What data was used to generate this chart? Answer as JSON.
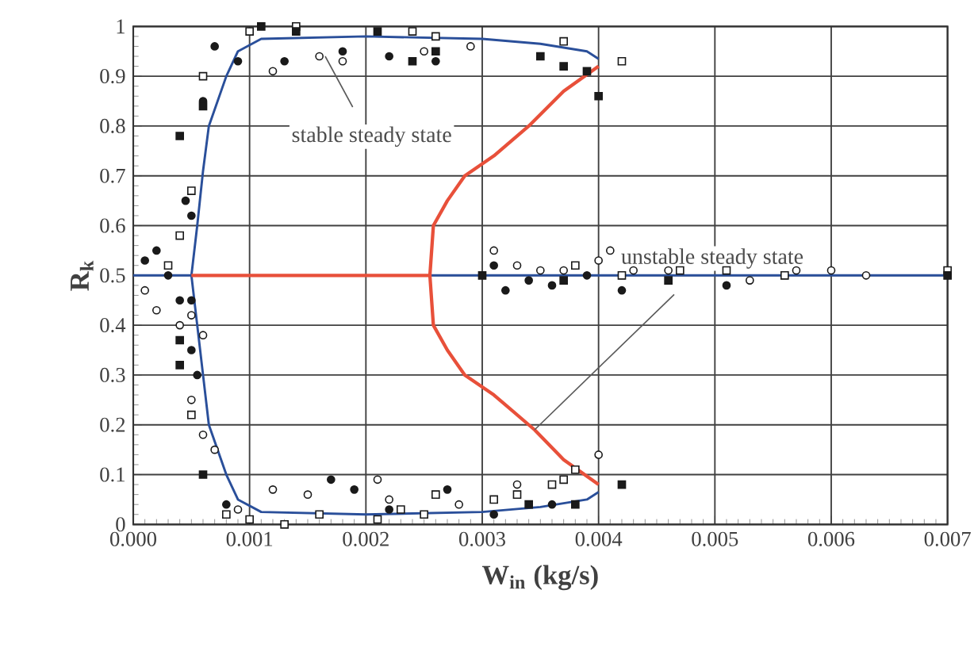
{
  "chart_data": {
    "type": "scatter",
    "xlabel": "W$_{in}$ (kg/s)",
    "ylabel": "R$_{k}$",
    "xlim": [
      0,
      0.007
    ],
    "ylim": [
      0,
      1
    ],
    "xticks": [
      {
        "value": 0,
        "label": "0.000"
      },
      {
        "value": 0.001,
        "label": "0.001"
      },
      {
        "value": 0.002,
        "label": "0.002"
      },
      {
        "value": 0.003,
        "label": "0.003"
      },
      {
        "value": 0.004,
        "label": "0.004"
      },
      {
        "value": 0.005,
        "label": "0.005"
      },
      {
        "value": 0.006,
        "label": "0.006"
      },
      {
        "value": 0.007,
        "label": "0.007"
      }
    ],
    "yticks": [
      0,
      0.1,
      0.2,
      0.3,
      0.4,
      0.5,
      0.6,
      0.7,
      0.8,
      0.9,
      1
    ],
    "grid": true,
    "series": [
      {
        "type": "line",
        "color": "#2a4f9a",
        "x": [
          0.004,
          0.0039,
          0.0035,
          0.003,
          0.002,
          0.0011,
          0.0009,
          0.0008,
          0.00065,
          0.0006,
          0.00055,
          0.0005,
          0.00055,
          0.0006,
          0.00065,
          0.0008,
          0.0009,
          0.0011,
          0.002,
          0.003,
          0.0035,
          0.0039,
          0.004
        ],
        "values": [
          0.935,
          0.95,
          0.965,
          0.975,
          0.98,
          0.975,
          0.95,
          0.9,
          0.8,
          0.71,
          0.6,
          0.5,
          0.4,
          0.3,
          0.2,
          0.1,
          0.05,
          0.025,
          0.02,
          0.025,
          0.035,
          0.05,
          0.065
        ]
      },
      {
        "type": "line",
        "color": "#2a4f9a",
        "x": [
          0,
          0.0005
        ],
        "values": [
          0.5,
          0.5
        ]
      },
      {
        "type": "line",
        "color": "#2a4f9a",
        "x": [
          0.00255,
          0.007
        ],
        "values": [
          0.5,
          0.5
        ]
      },
      {
        "type": "line",
        "color": "#e8503a",
        "x": [
          0.0005,
          0.00255
        ],
        "values": [
          0.5,
          0.5
        ]
      },
      {
        "type": "line",
        "color": "#e8503a",
        "x": [
          0.004,
          0.0037,
          0.0034,
          0.0031,
          0.00285,
          0.0027,
          0.00258,
          0.00255,
          0.00258,
          0.0027,
          0.00285,
          0.0031,
          0.00345,
          0.0037,
          0.004
        ],
        "values": [
          0.92,
          0.87,
          0.8,
          0.74,
          0.7,
          0.65,
          0.6,
          0.5,
          0.4,
          0.35,
          0.3,
          0.26,
          0.19,
          0.13,
          0.08
        ]
      },
      {
        "marker": "circle",
        "color": "#1a1a1a",
        "x": [
          0.0001,
          0.0002,
          0.0003,
          0.0004,
          0.00045,
          0.0005,
          0.0006,
          0.00055,
          0.0005,
          0.0008,
          0.0009,
          0.0013,
          0.0018,
          0.0022,
          0.0026,
          0.0017,
          0.0019,
          0.0022,
          0.0027,
          0.0031,
          0.0032,
          0.0034,
          0.0036,
          0.0039,
          0.0042,
          0.0051,
          0.0031,
          0.0036,
          0.0007,
          0.0005
        ],
        "values": [
          0.53,
          0.55,
          0.5,
          0.45,
          0.65,
          0.62,
          0.85,
          0.3,
          0.35,
          0.04,
          0.93,
          0.93,
          0.95,
          0.94,
          0.93,
          0.09,
          0.07,
          0.03,
          0.07,
          0.52,
          0.47,
          0.49,
          0.48,
          0.5,
          0.47,
          0.48,
          0.02,
          0.04,
          0.96,
          0.45
        ]
      },
      {
        "marker": "circle",
        "color": "#ffffff",
        "x": [
          0.0001,
          0.0002,
          0.0004,
          0.0005,
          0.0006,
          0.0005,
          0.0006,
          0.0007,
          0.0009,
          0.0012,
          0.0015,
          0.0021,
          0.0022,
          0.0012,
          0.0016,
          0.0018,
          0.0025,
          0.0029,
          0.0031,
          0.0033,
          0.0035,
          0.0037,
          0.004,
          0.0041,
          0.0043,
          0.0046,
          0.0053,
          0.0057,
          0.006,
          0.0063,
          0.004,
          0.0033,
          0.0028
        ],
        "values": [
          0.47,
          0.43,
          0.4,
          0.42,
          0.38,
          0.25,
          0.18,
          0.15,
          0.03,
          0.07,
          0.06,
          0.09,
          0.05,
          0.91,
          0.94,
          0.93,
          0.95,
          0.96,
          0.55,
          0.52,
          0.51,
          0.51,
          0.53,
          0.55,
          0.51,
          0.51,
          0.49,
          0.51,
          0.51,
          0.5,
          0.14,
          0.08,
          0.04
        ]
      },
      {
        "marker": "square",
        "color": "#ffffff",
        "x": [
          0.0006,
          0.0005,
          0.0004,
          0.0003,
          0.0008,
          0.001,
          0.0013,
          0.0016,
          0.0021,
          0.0023,
          0.0025,
          0.0026,
          0.0031,
          0.0033,
          0.0036,
          0.0037,
          0.0038,
          0.001,
          0.0014,
          0.0024,
          0.0026,
          0.0042,
          0.0037,
          0.0038,
          0.0042,
          0.0047,
          0.0051,
          0.0056,
          0.007,
          0.0005
        ],
        "values": [
          0.9,
          0.67,
          0.58,
          0.52,
          0.02,
          0.01,
          0.0,
          0.02,
          0.01,
          0.03,
          0.02,
          0.06,
          0.05,
          0.06,
          0.08,
          0.09,
          0.11,
          0.99,
          1.0,
          0.99,
          0.98,
          0.93,
          0.97,
          0.52,
          0.5,
          0.51,
          0.51,
          0.5,
          0.51,
          0.22
        ]
      },
      {
        "marker": "square",
        "color": "#1a1a1a",
        "x": [
          0.0004,
          0.0006,
          0.0004,
          0.0004,
          0.0006,
          0.0011,
          0.0014,
          0.0021,
          0.0024,
          0.0035,
          0.0037,
          0.0039,
          0.004,
          0.0042,
          0.0038,
          0.0034,
          0.003,
          0.0037,
          0.0046,
          0.007,
          0.0026
        ],
        "values": [
          0.78,
          0.84,
          0.37,
          0.32,
          0.1,
          1.0,
          0.99,
          0.99,
          0.93,
          0.94,
          0.92,
          0.91,
          0.86,
          0.08,
          0.04,
          0.04,
          0.5,
          0.49,
          0.49,
          0.5,
          0.95
        ]
      }
    ],
    "annotations": [
      {
        "text": "stable steady state",
        "x": 0.00165,
        "y": 0.94
      },
      {
        "text": "unstable steady state",
        "x": 0.00345,
        "y": 0.19
      }
    ]
  }
}
